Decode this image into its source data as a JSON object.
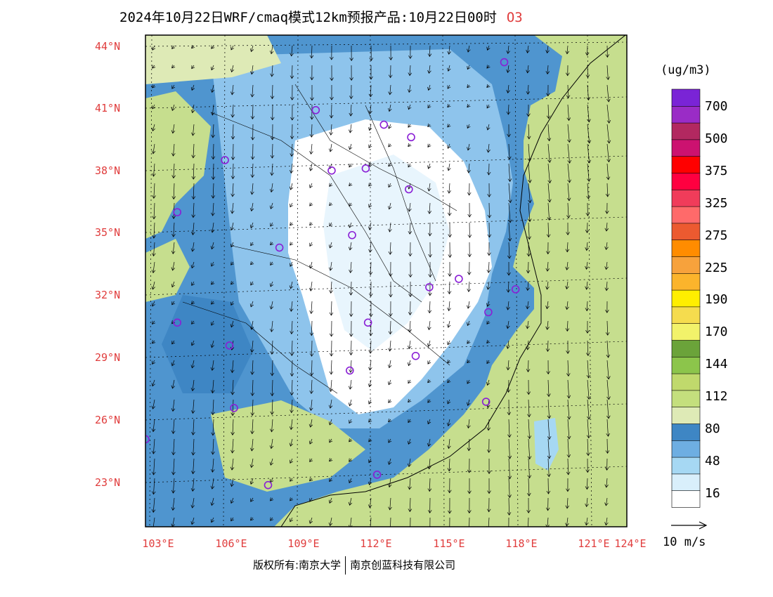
{
  "title": {
    "main": "2024年10月22日WRF/cmaq模式12km预报产品:10月22日00时",
    "species": "O3"
  },
  "axes": {
    "lat_labels": [
      "44°N",
      "41°N",
      "38°N",
      "35°N",
      "32°N",
      "29°N",
      "26°N",
      "23°N"
    ],
    "lon_labels": [
      "103°E",
      "106°E",
      "109°E",
      "112°E",
      "115°E",
      "118°E",
      "121°E",
      "124°E"
    ],
    "lon_range": [
      102.8,
      124.0
    ],
    "lat_range": [
      20.8,
      44.4
    ]
  },
  "colorbar": {
    "unit": "(ug/m3)",
    "labels": [
      "700",
      "500",
      "375",
      "325",
      "275",
      "225",
      "190",
      "170",
      "144",
      "112",
      "80",
      "48",
      "16"
    ],
    "colors": [
      "#ffffff",
      "#d9effb",
      "#a6d8f3",
      "#6eaee2",
      "#3e86c4",
      "#deeab6",
      "#c4df7d",
      "#c0d96c",
      "#8cc54b",
      "#6ba33a",
      "#f2f26a",
      "#f5dc4e",
      "#ffee00",
      "#fbb42c",
      "#f7a23c",
      "#ff8c00",
      "#ec5a30",
      "#ff6a6a",
      "#f03c5a",
      "#ff0040",
      "#ff0000",
      "#cc1270",
      "#b22860",
      "#9a2cc6",
      "#7a24d6"
    ]
  },
  "wind_reference": "10 m/s",
  "footer": {
    "left": "版权所有:南京大学",
    "right": "南京创蓝科技有限公司"
  },
  "stations": [
    {
      "lon": 118.6,
      "lat": 43.1
    },
    {
      "lon": 110.3,
      "lat": 40.8
    },
    {
      "lon": 113.3,
      "lat": 40.1
    },
    {
      "lon": 114.5,
      "lat": 39.5
    },
    {
      "lon": 106.3,
      "lat": 38.4
    },
    {
      "lon": 111.0,
      "lat": 37.9
    },
    {
      "lon": 112.5,
      "lat": 38.0
    },
    {
      "lon": 114.4,
      "lat": 37.0
    },
    {
      "lon": 104.2,
      "lat": 35.9
    },
    {
      "lon": 108.7,
      "lat": 34.2
    },
    {
      "lon": 111.9,
      "lat": 34.8
    },
    {
      "lon": 115.3,
      "lat": 32.3
    },
    {
      "lon": 116.6,
      "lat": 32.7
    },
    {
      "lon": 119.1,
      "lat": 32.2
    },
    {
      "lon": 117.9,
      "lat": 31.1
    },
    {
      "lon": 104.2,
      "lat": 30.6
    },
    {
      "lon": 112.6,
      "lat": 30.6
    },
    {
      "lon": 106.5,
      "lat": 29.5
    },
    {
      "lon": 114.7,
      "lat": 29.0
    },
    {
      "lon": 111.8,
      "lat": 28.3
    },
    {
      "lon": 106.7,
      "lat": 26.5
    },
    {
      "lon": 117.8,
      "lat": 26.8
    },
    {
      "lon": 102.8,
      "lat": 25.0
    },
    {
      "lon": 113.0,
      "lat": 23.3
    },
    {
      "lon": 108.2,
      "lat": 22.8
    }
  ]
}
